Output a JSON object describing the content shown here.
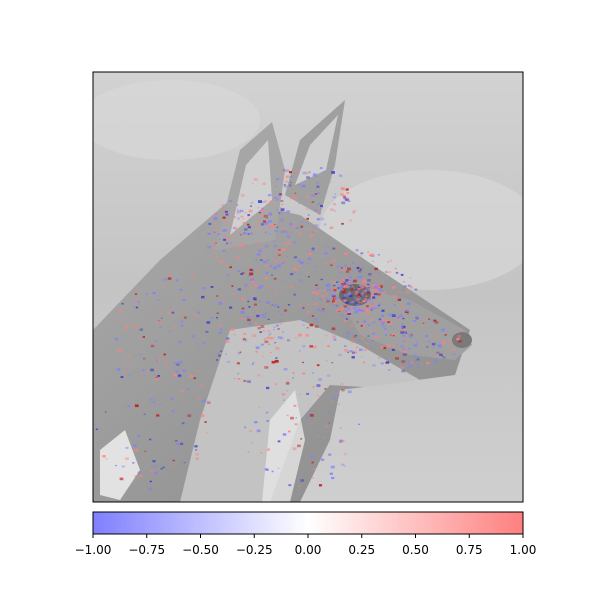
{
  "chart_data": {
    "type": "heatmap",
    "description_free": true,
    "colormap": {
      "name": "bwr",
      "low_color": "#7f7fff",
      "mid_color": "#ffffff",
      "high_color": "#ff7f7f"
    },
    "axis_ticks_visible": false,
    "colorbar": {
      "orientation": "horizontal",
      "range": [
        -1.0,
        1.0
      ],
      "ticks": [
        -1.0,
        -0.75,
        -0.5,
        -0.25,
        0.0,
        0.25,
        0.5,
        0.75,
        1.0
      ],
      "tick_labels": [
        "−1.00",
        "−0.75",
        "−0.50",
        "−0.25",
        "0.00",
        "0.25",
        "0.50",
        "0.75",
        "1.00"
      ]
    }
  },
  "colors": {
    "photo_background": "#c8c8c8",
    "photo_fur": "#9a9a9a",
    "photo_fur_light": "#dcdcdc",
    "photo_dark": "#6e6e6e",
    "frame": "#000000"
  }
}
